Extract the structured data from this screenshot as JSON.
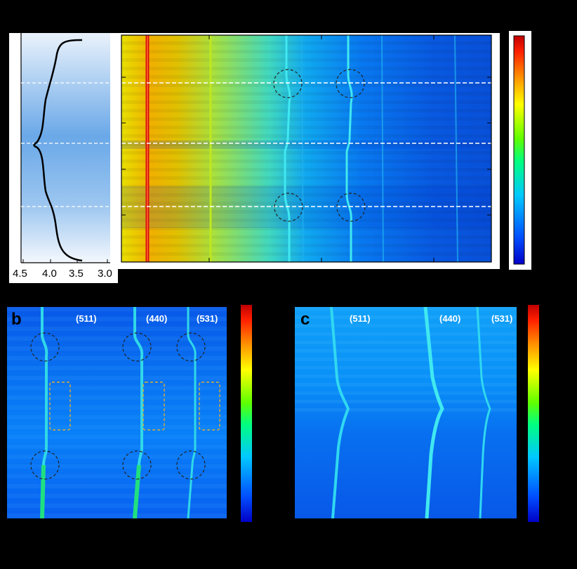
{
  "figure": {
    "background": "#000000",
    "panel_a": {
      "voltage_axis": {
        "tick_labels": [
          "4.5",
          "4.0",
          "3.5",
          "3.0"
        ]
      },
      "dashed_line_color": "#ffffff",
      "circle_color": "#222222"
    },
    "panel_b": {
      "letter": "b",
      "peak_labels": [
        "(511)",
        "(440)",
        "(531)"
      ],
      "circle_color": "#222222",
      "box_color": "#e0b030"
    },
    "panel_c": {
      "letter": "c",
      "peak_labels": [
        "(511)",
        "(440)",
        "(531)"
      ]
    },
    "colormap": [
      "#0000c8",
      "#0050ff",
      "#00c8ff",
      "#00ff80",
      "#60ff00",
      "#ffff00",
      "#ff9000",
      "#ff2000",
      "#c00000"
    ]
  }
}
